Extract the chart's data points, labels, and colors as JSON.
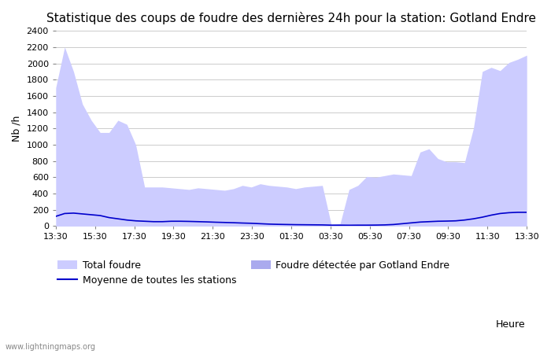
{
  "title": "Statistique des coups de foudre des dernières 24h pour la station: Gotland Endre",
  "ylabel": "Nb /h",
  "xlabel": "Heure",
  "watermark": "www.lightningmaps.org",
  "ylim": [
    0,
    2400
  ],
  "yticks": [
    0,
    200,
    400,
    600,
    800,
    1000,
    1200,
    1400,
    1600,
    1800,
    2000,
    2200,
    2400
  ],
  "x_labels": [
    "13:30",
    "15:30",
    "17:30",
    "19:30",
    "21:30",
    "23:30",
    "01:30",
    "03:30",
    "05:30",
    "07:30",
    "09:30",
    "11:30",
    "13:30"
  ],
  "total_foudre": [
    1700,
    2200,
    1900,
    1500,
    1300,
    1150,
    1150,
    1300,
    1250,
    1000,
    480,
    480,
    480,
    470,
    460,
    450,
    470,
    460,
    450,
    440,
    460,
    500,
    480,
    520,
    500,
    490,
    480,
    460,
    480,
    490,
    500,
    20,
    30,
    450,
    500,
    610,
    600,
    620,
    640,
    630,
    620,
    910,
    950,
    830,
    790,
    790,
    780,
    1200,
    1900,
    1950,
    1910,
    2010,
    2050,
    2100
  ],
  "gotland_foudre": [
    0,
    0,
    0,
    0,
    0,
    0,
    0,
    0,
    0,
    0,
    0,
    0,
    0,
    0,
    0,
    0,
    0,
    0,
    0,
    0,
    0,
    0,
    0,
    0,
    0,
    0,
    0,
    0,
    0,
    0,
    0,
    0,
    0,
    0,
    0,
    0,
    0,
    0,
    0,
    0,
    0,
    0,
    0,
    0,
    0,
    0,
    0,
    0,
    0,
    0,
    0,
    0,
    0,
    0
  ],
  "moyenne": [
    120,
    155,
    160,
    150,
    140,
    130,
    105,
    90,
    75,
    65,
    60,
    55,
    55,
    60,
    60,
    58,
    55,
    52,
    48,
    45,
    42,
    38,
    35,
    30,
    25,
    22,
    20,
    18,
    17,
    16,
    15,
    12,
    12,
    11,
    12,
    12,
    13,
    15,
    20,
    30,
    40,
    50,
    55,
    60,
    62,
    65,
    75,
    90,
    110,
    135,
    155,
    165,
    170,
    170
  ],
  "color_total": "#ccccff",
  "color_gotland": "#aaaaee",
  "color_moyenne": "#0000cc",
  "bg_color": "#ffffff",
  "grid_color": "#cccccc",
  "title_fontsize": 11,
  "label_fontsize": 9,
  "tick_fontsize": 8,
  "n_points": 54
}
